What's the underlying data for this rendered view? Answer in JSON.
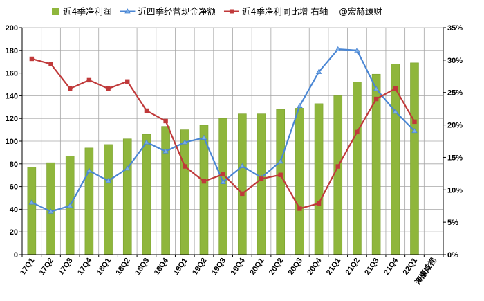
{
  "chart_data": {
    "type": "bar+line",
    "categories": [
      "17Q1",
      "17Q2",
      "17Q3",
      "17Q4",
      "18Q1",
      "18Q2",
      "18Q3",
      "18Q4",
      "19Q1",
      "19Q2",
      "19Q3",
      "19Q4",
      "20Q1",
      "20Q2",
      "20Q3",
      "20Q4",
      "21Q1",
      "21Q2",
      "21Q3",
      "21Q4",
      "22Q1",
      "海康威视"
    ],
    "series": [
      {
        "name": "近4季净利润",
        "kind": "bar",
        "axis": "left",
        "color": "#8fb63c",
        "values": [
          77,
          81,
          87,
          94,
          97,
          102,
          106,
          113,
          110,
          114,
          120,
          124,
          124,
          128,
          129,
          133,
          140,
          152,
          159,
          168,
          169,
          null
        ]
      },
      {
        "name": "近四季经营现金净额",
        "kind": "line",
        "axis": "left",
        "color": "#4a86d4",
        "marker": "triangle",
        "values": [
          46,
          38,
          43,
          74,
          65,
          76,
          99,
          91,
          99,
          103,
          64,
          78,
          68,
          82,
          131,
          161,
          181,
          180,
          146,
          126,
          109,
          null
        ]
      },
      {
        "name": "近4季净利同比增 右轴",
        "kind": "line",
        "axis": "right",
        "color": "#c0393a",
        "marker": "square",
        "values": [
          30.2,
          29.4,
          25.6,
          26.9,
          25.6,
          26.7,
          22.2,
          20.6,
          13.6,
          11.3,
          12.4,
          9.4,
          11.7,
          12.3,
          7.1,
          7.9,
          13.6,
          18.9,
          24.0,
          25.6,
          20.5,
          null
        ]
      }
    ],
    "y_left": {
      "min": 0,
      "max": 200,
      "step": 20,
      "ticks": [
        "0",
        "20",
        "40",
        "60",
        "80",
        "100",
        "120",
        "140",
        "160",
        "180",
        "200"
      ]
    },
    "y_right": {
      "min": 0,
      "max": 35,
      "step": 5,
      "ticks": [
        "0%",
        "5%",
        "10%",
        "15%",
        "20%",
        "25%",
        "30%",
        "35%"
      ]
    },
    "legend_position": "top",
    "watermark": "@宏赫臻财",
    "grid": true
  },
  "colors": {
    "grid": "#a6a6a6",
    "axis": "#000000",
    "bar": "#8fb63c",
    "bar_edge": "#7aa02e",
    "cash_line": "#4a86d4",
    "growth_line": "#c0393a",
    "triangle_marker": "#7fb0e8"
  }
}
